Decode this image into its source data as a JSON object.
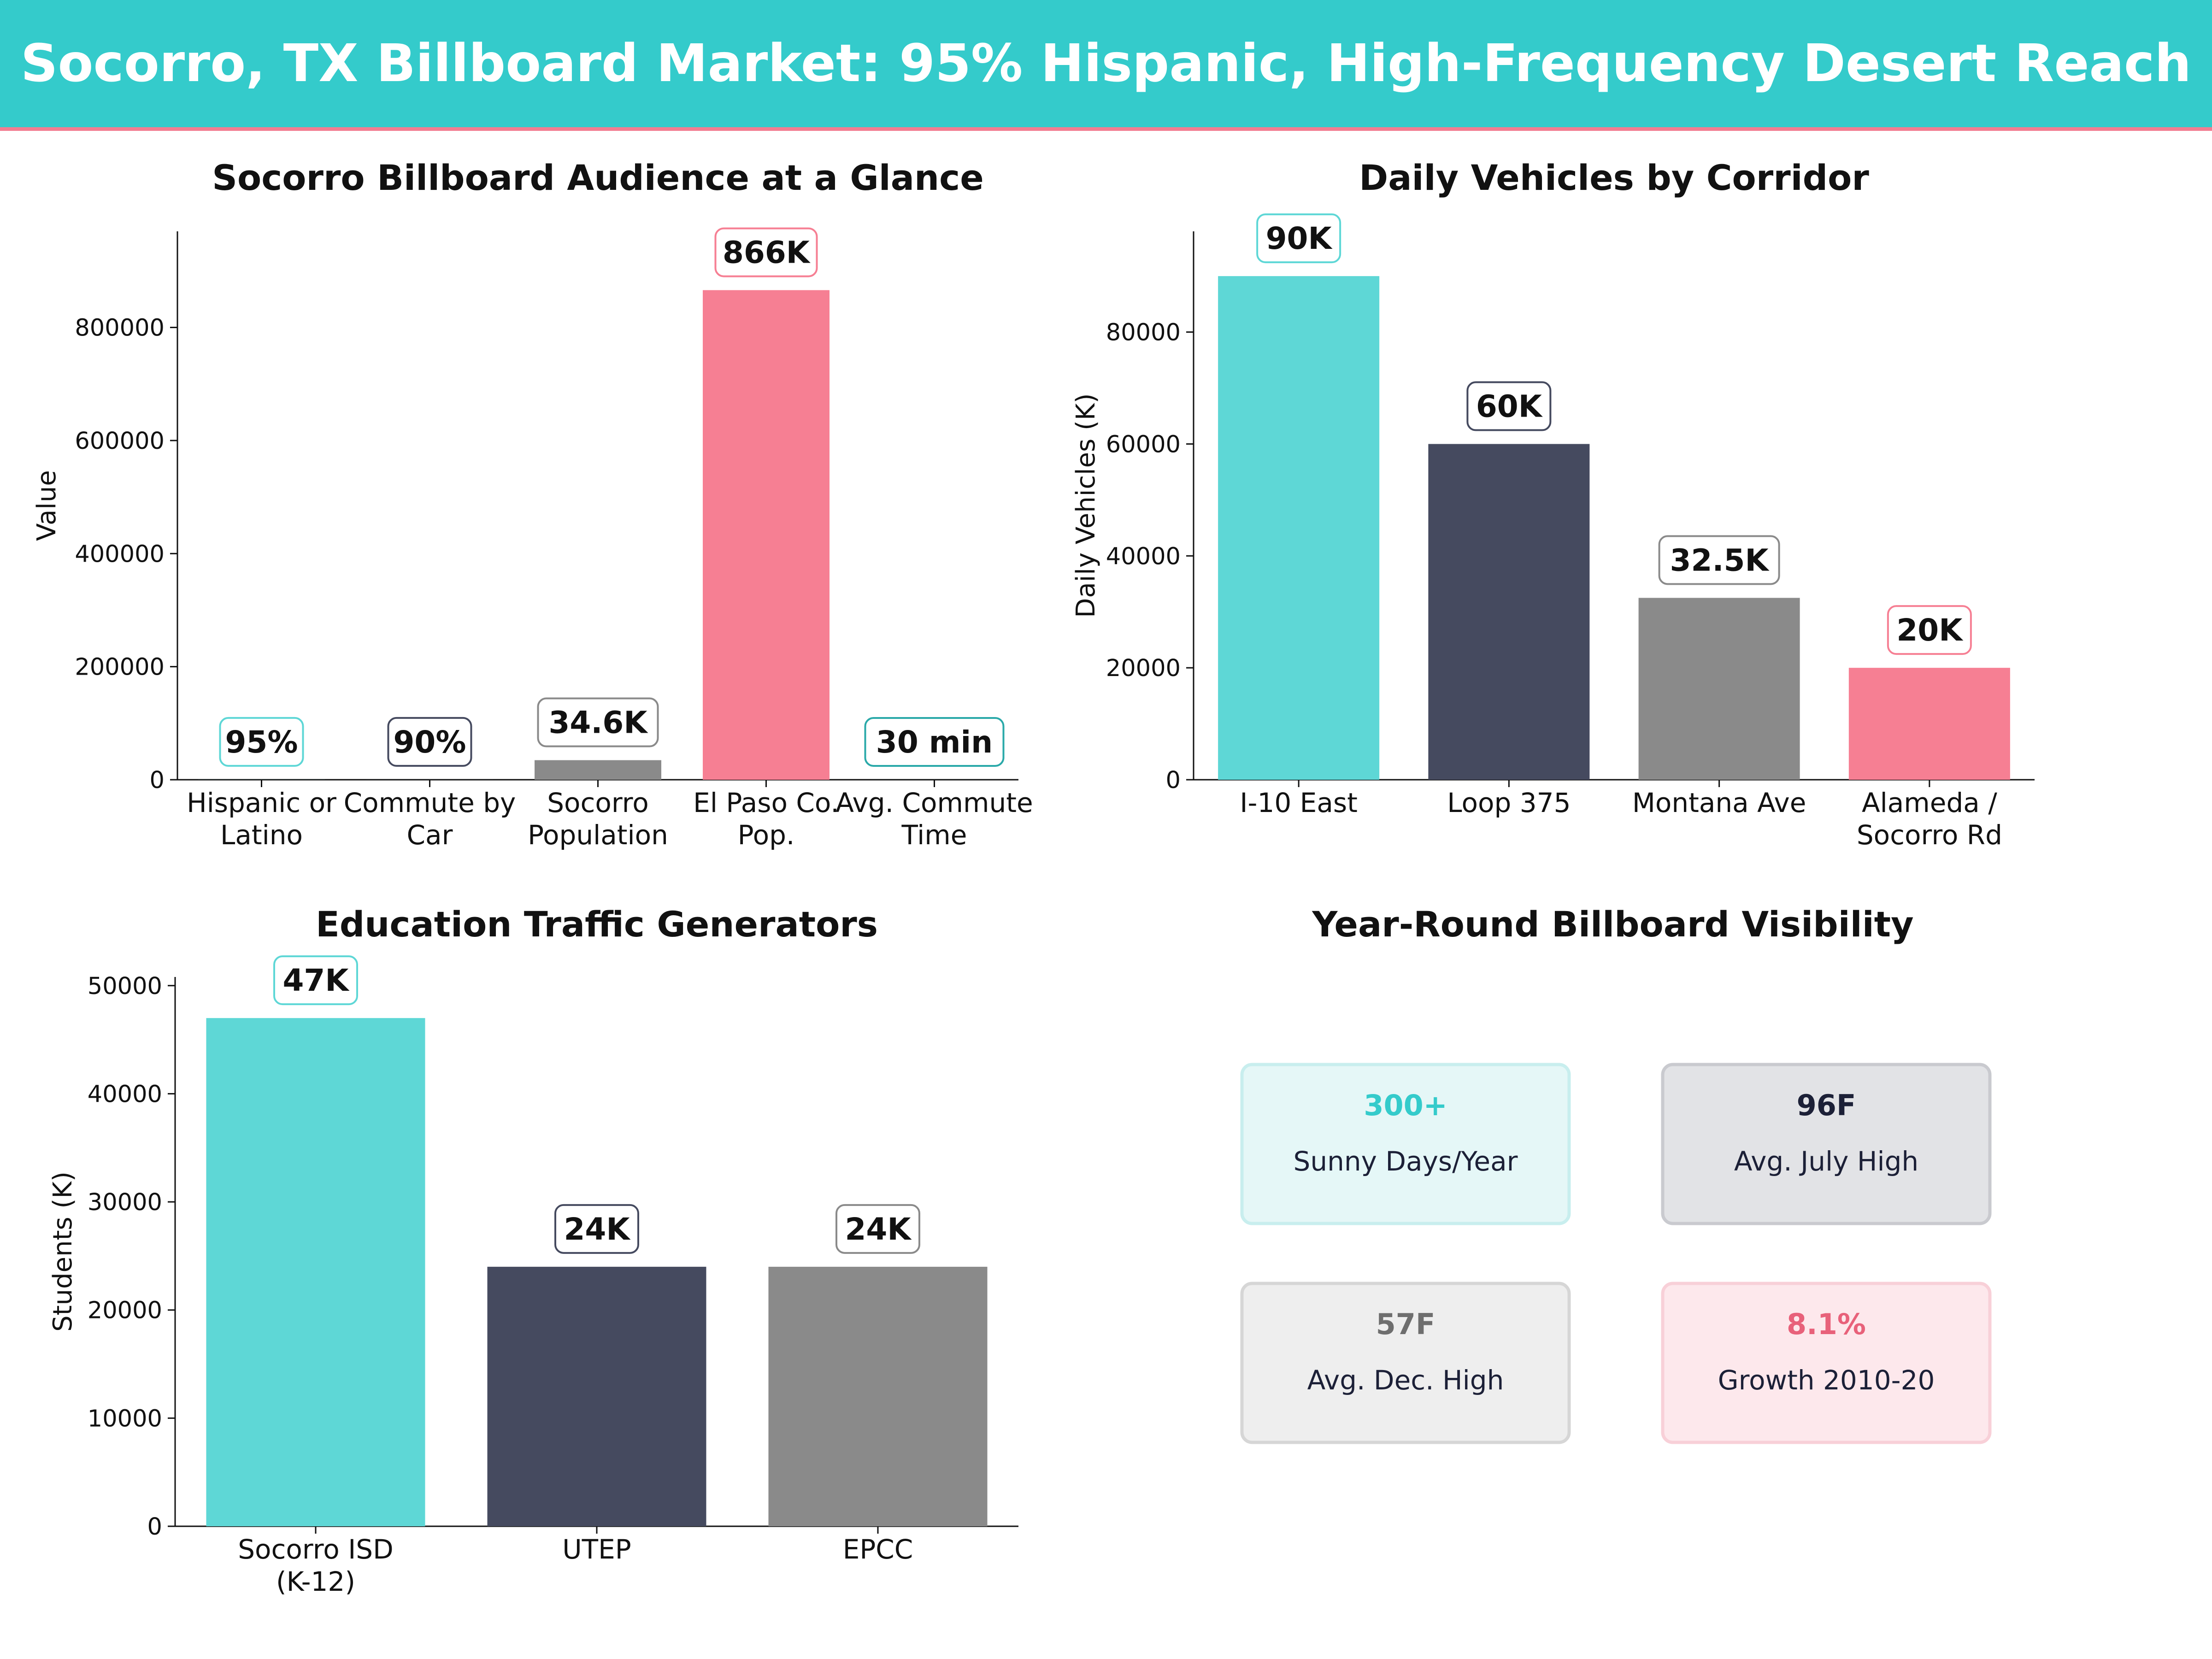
{
  "header": {
    "title": "Socorro, TX Billboard Market: 95% Hispanic, High-Frequency Desert Reach"
  },
  "colors": {
    "teal": "#5ed7d6",
    "navy": "#454a5f",
    "gray": "#8a8a8a",
    "pink": "#f67f93",
    "header_bg": "#34cbcb",
    "header_line": "#f27d91"
  },
  "chart_data": [
    {
      "type": "bar",
      "title": "Socorro Billboard Audience at a Glance",
      "xlabel": "",
      "ylabel": "Value",
      "ylim": [
        0,
        970000
      ],
      "yticks": [
        "0",
        "200000",
        "400000",
        "600000",
        "800000"
      ],
      "categories": [
        "Hispanic or Latino",
        "Commute by Car",
        "Socorro Population",
        "El Paso Co. Pop.",
        "Avg. Commute Time"
      ],
      "category_lines": [
        [
          "Hispanic or",
          "Latino"
        ],
        [
          "Commute by",
          "Car"
        ],
        [
          "Socorro",
          "Population"
        ],
        [
          "El Paso Co.",
          "Pop."
        ],
        [
          "Avg. Commute",
          "Time"
        ]
      ],
      "values": [
        95,
        90,
        34600,
        866000,
        30
      ],
      "data_labels": [
        "95%",
        "90%",
        "34.6K",
        "866K",
        "30 min"
      ],
      "bar_colors": [
        "#5ed7d6",
        "#454a5f",
        "#8a8a8a",
        "#f67f93",
        "#2aa9a9"
      ],
      "grid": false
    },
    {
      "type": "bar",
      "title": "Daily Vehicles by Corridor",
      "xlabel": "",
      "ylabel": "Daily Vehicles (K)",
      "ylim": [
        0,
        98000
      ],
      "yticks": [
        "0",
        "20000",
        "40000",
        "60000",
        "80000"
      ],
      "categories": [
        "I-10 East",
        "Loop 375",
        "Montana Ave",
        "Alameda / Socorro Rd"
      ],
      "category_lines": [
        [
          "I-10 East"
        ],
        [
          "Loop 375"
        ],
        [
          "Montana Ave"
        ],
        [
          "Alameda /",
          "Socorro Rd"
        ]
      ],
      "values": [
        90000,
        60000,
        32500,
        20000
      ],
      "data_labels": [
        "90K",
        "60K",
        "32.5K",
        "20K"
      ],
      "bar_colors": [
        "#5ed7d6",
        "#454a5f",
        "#8a8a8a",
        "#f67f93"
      ],
      "grid": false
    },
    {
      "type": "bar",
      "title": "Education Traffic Generators",
      "xlabel": "",
      "ylabel": "Students (K)",
      "ylim": [
        0,
        50800
      ],
      "yticks": [
        "0",
        "10000",
        "20000",
        "30000",
        "40000",
        "50000"
      ],
      "categories": [
        "Socorro ISD (K-12)",
        "UTEP",
        "EPCC"
      ],
      "category_lines": [
        [
          "Socorro ISD",
          "(K-12)"
        ],
        [
          "UTEP"
        ],
        [
          "EPCC"
        ]
      ],
      "values": [
        47000,
        24000,
        24000
      ],
      "data_labels": [
        "47K",
        "24K",
        "24K"
      ],
      "bar_colors": [
        "#5ed7d6",
        "#454a5f",
        "#8a8a8a"
      ],
      "grid": false
    }
  ],
  "visibility": {
    "title": "Year-Round Billboard Visibility",
    "stats": [
      {
        "value": "300+",
        "label": "Sunny Days/Year",
        "color": "#34cbcb",
        "bg": "#e5f7f7",
        "border": "#c8eeee"
      },
      {
        "value": "96F",
        "label": "Avg. July High",
        "color": "#1c2037",
        "bg": "#e2e3e6",
        "border": "#c9cacf"
      },
      {
        "value": "57F",
        "label": "Avg. Dec. High",
        "color": "#6e6e6e",
        "bg": "#eeeeee",
        "border": "#d6d6d6"
      },
      {
        "value": "8.1%",
        "label": "Growth 2010-20",
        "color": "#e8617a",
        "bg": "#fde8ec",
        "border": "#f8d0d8"
      }
    ]
  }
}
